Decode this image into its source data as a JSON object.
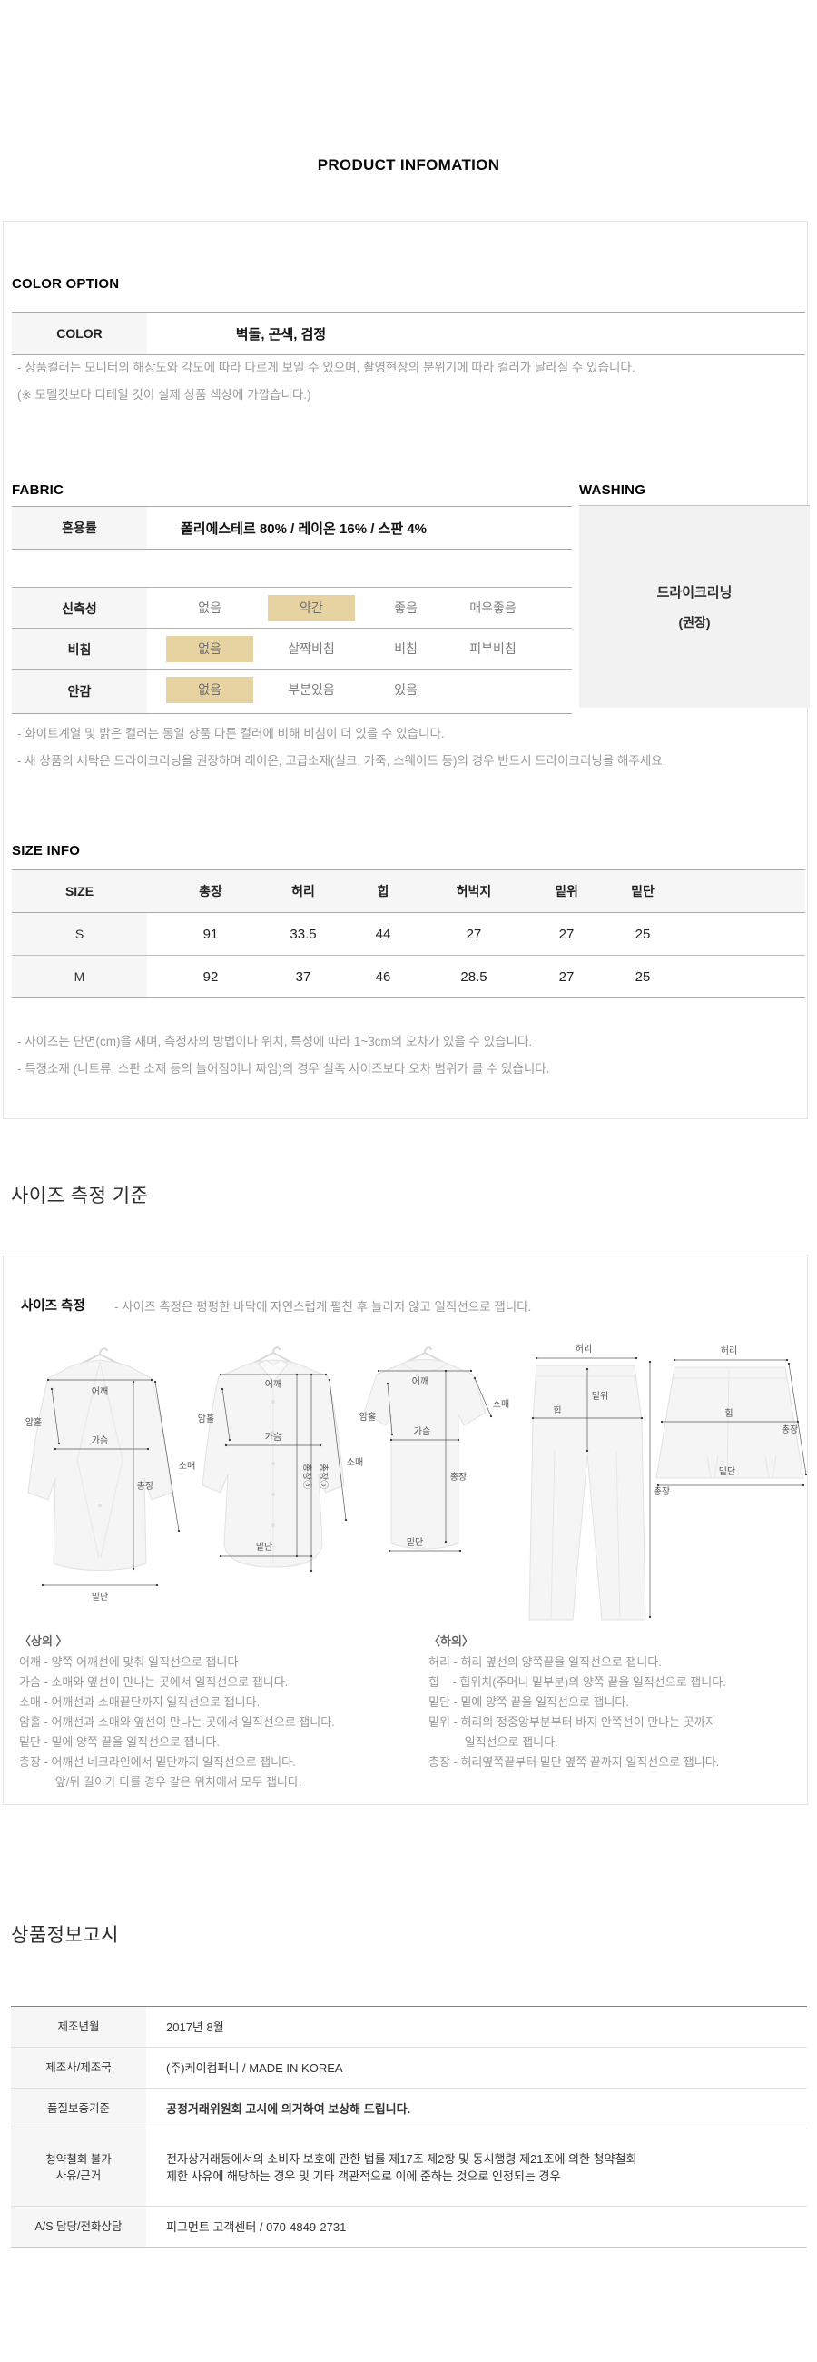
{
  "title": "PRODUCT INFOMATION",
  "color_option": {
    "heading": "COLOR OPTION",
    "row_label": "COLOR",
    "row_value": "벽돌, 곤색, 검정",
    "notes": [
      "- 상품컬러는 모니터의 해상도와 각도에 따라 다르게 보일 수 있으며, 촬영현장의 분위기에 따라 컬러가 달라질 수 있습니다.",
      "(※ 모델컷보다 디테일 컷이 실제 상품 색상에 가깝습니다.)"
    ]
  },
  "fabric": {
    "heading": "FABRIC",
    "blend_label": "혼용률",
    "blend_value": "폴리에스테르 80% / 레이온 16%  / 스판 4%",
    "properties": [
      {
        "label": "신축성",
        "options": [
          "없음",
          "약간",
          "좋음",
          "매우좋음"
        ],
        "selected": 1
      },
      {
        "label": "비침",
        "options": [
          "없음",
          "살짝비침",
          "비침",
          "피부비침"
        ],
        "selected": 0
      },
      {
        "label": "안감",
        "options": [
          "없음",
          "부분있음",
          "있음"
        ],
        "selected": 0
      }
    ],
    "notes": [
      "- 화이트계열 및 밝은 컬러는 동일 상품 다른 컬러에 비해 비침이 더 있을 수 있습니다.",
      "- 새 상품의 세탁은 드라이크리닝을 권장하며 레이온, 고급소재(실크, 가죽, 스웨이드 등)의 경우 반드시 드라이크리닝을 해주세요."
    ]
  },
  "washing": {
    "heading": "WASHING",
    "line1": "드라이크리닝",
    "line2": "(권장)"
  },
  "size_info": {
    "heading": "SIZE INFO",
    "columns": [
      "SIZE",
      "총장",
      "허리",
      "힙",
      "허벅지",
      "밑위",
      "밑단"
    ],
    "rows": [
      {
        "size": "S",
        "values": [
          "91",
          "33.5",
          "44",
          "27",
          "27",
          "25"
        ]
      },
      {
        "size": "M",
        "values": [
          "92",
          "37",
          "46",
          "28.5",
          "27",
          "25"
        ]
      }
    ],
    "notes": [
      "- 사이즈는 단면(cm)을 재며, 측정자의 방법이나 위치, 특성에 따라 1~3cm의 오차가 있을 수 있습니다.",
      "- 특정소재 (니트류, 스판 소재 등의 늘어짐이나 짜임)의 경우 실측 사이즈보다 오차 범위가 클 수 있습니다."
    ]
  },
  "measure": {
    "heading": "사이즈 측정 기준",
    "label": "사이즈 측정",
    "desc": "- 사이즈 측정은 평평한 바닥에 자연스럽게 펼친 후 늘리지 않고 일직선으로 잽니다.",
    "top_title": "〈상의 〉",
    "top_lines": [
      "어깨 - 양쪽 어깨선에 맞춰 일직선으로 잽니다",
      "가슴 - 소매와 옆선이 만나는 곳에서 일직선으로 잽니다.",
      "소매 - 어깨선과 소매끝단까지 일직선으로 잽니다.",
      "암홀 - 어깨선과 소매와 옆선이 만나는 곳에서 일직선으로 잽니다.",
      "밑단 - 밑에 양쪽 끝을 일직선으로 잽니다.",
      "총장 - 어깨선 네크라인에서 밑단까지 일직선으로 잽니다.",
      "           앞/뒤 길이가 다를 경우 같은 위치에서 모두 잽니다."
    ],
    "bottom_title": "〈하의〉",
    "bottom_lines": [
      "허리 - 허리 옆선의 양쪽끝을 일직선으로 잽니다.",
      "힙    - 힙위치(주머니 밑부분)의 양쪽 끝을 일직선으로 잽니다.",
      "밑단 - 밑에 양쪽 끝을 일직선으로 잽니다.",
      "밑위 - 허리의 정중앙부분부터 바지 안쪽선이 만나는 곳까지",
      "           일직선으로 잽니다.",
      "총장 - 허리옆쪽끝부터 밑단 옆쪽 끝까지 일직선으로 잽니다."
    ],
    "diagrams": {
      "jacket": {
        "shoulder": "어깨",
        "armhole": "암홀",
        "chest": "가슴",
        "sleeve": "소매",
        "length": "총장",
        "hem": "밑단"
      },
      "shirt": {
        "shoulder": "어깨",
        "armhole": "암홀",
        "chest": "가슴",
        "sleeve": "소매",
        "length_a": "총장ⓐ",
        "length_b": "총장ⓑ",
        "hem": "밑단"
      },
      "tshirt": {
        "shoulder": "어깨",
        "armhole": "암홀",
        "chest": "가슴",
        "sleeve": "소매",
        "length": "총장",
        "hem": "밑단"
      },
      "pants": {
        "waist": "허리",
        "rise": "밑위",
        "hip": "힙",
        "length": "총장"
      },
      "skirt": {
        "waist": "허리",
        "hip": "힙",
        "length": "총장",
        "hem": "밑단"
      }
    }
  },
  "notice": {
    "heading": "상품정보고시",
    "rows": [
      {
        "label": "제조년월",
        "value": "2017년 8월",
        "bold": false
      },
      {
        "label": "제조사/제조국",
        "value": "(주)케이컴퍼니 / MADE IN KOREA",
        "bold": false
      },
      {
        "label": "품질보증기준",
        "value": "공정거래위원회 고시에 의거하여 보상해 드립니다.",
        "bold": true
      },
      {
        "label": "청약철회 불가\n사유/근거",
        "value": "전자상거래등에서의 소비자 보호에 관한 법률 제17조 제2항 및 동시행령 제21조에 의한 청약철회\n제한 사유에 해당하는 경우 및 기타 객관적으로 이에 준하는 것으로 인정되는 경우",
        "bold": false
      },
      {
        "label": "A/S 담당/전화상담",
        "value": "피그먼트 고객센터 / 070-4849-2731",
        "bold": false
      }
    ]
  },
  "colors": {
    "highlight": "#e7d3a2",
    "label_bg": "#f6f6f6",
    "washing_bg": "#f2f2f2",
    "note_text": "#9a9a9a",
    "table_border": "#a8a8a8"
  }
}
